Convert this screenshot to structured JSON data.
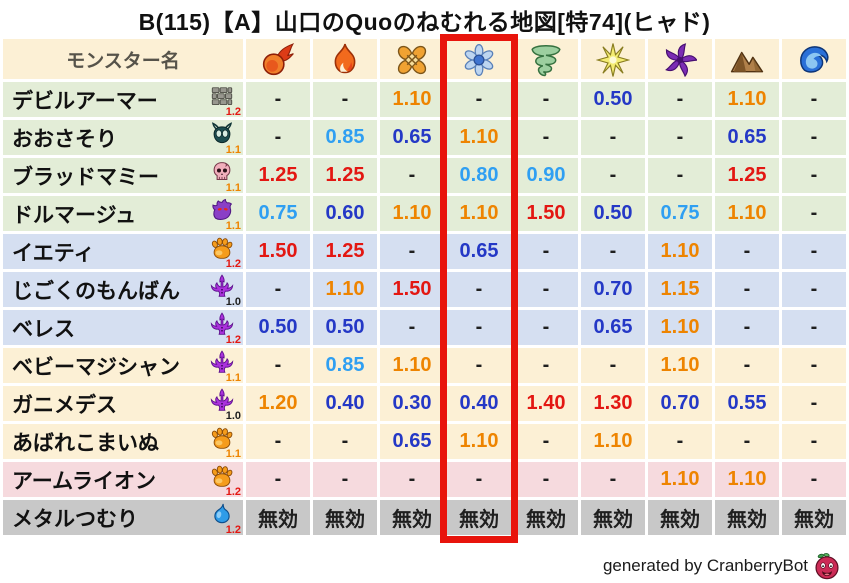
{
  "title": "B(115)【A】山口のQuoのねむれる地図[特74](ヒャド)",
  "header": {
    "name_column": "モンスター名",
    "element_columns": [
      "fire",
      "flame",
      "explosion",
      "ice",
      "wind",
      "lightning",
      "dark",
      "earth",
      "water"
    ]
  },
  "highlight": {
    "column_index": 3,
    "color": "#e8140c"
  },
  "rows": [
    {
      "name": "デビルアーマー",
      "family_icon": "wall",
      "multiplier": "1.2",
      "multiplier_tone": "r",
      "band": "green",
      "values": [
        "-",
        "-",
        "1.10",
        "-",
        "-",
        "0.50",
        "-",
        "1.10",
        "-"
      ],
      "tones": [
        "k",
        "k",
        "o",
        "k",
        "k",
        "b",
        "k",
        "o",
        "k"
      ]
    },
    {
      "name": "おおさそり",
      "family_icon": "bug",
      "multiplier": "1.1",
      "multiplier_tone": "o",
      "band": "green",
      "values": [
        "-",
        "0.85",
        "0.65",
        "1.10",
        "-",
        "-",
        "-",
        "0.65",
        "-"
      ],
      "tones": [
        "k",
        "lb",
        "b",
        "o",
        "k",
        "k",
        "k",
        "b",
        "k"
      ]
    },
    {
      "name": "ブラッドマミー",
      "family_icon": "skull",
      "multiplier": "1.1",
      "multiplier_tone": "o",
      "band": "green",
      "values": [
        "1.25",
        "1.25",
        "-",
        "0.80",
        "0.90",
        "-",
        "-",
        "1.25",
        "-"
      ],
      "tones": [
        "r",
        "r",
        "k",
        "lb",
        "lb",
        "k",
        "k",
        "r",
        "k"
      ]
    },
    {
      "name": "ドルマージュ",
      "family_icon": "ghost",
      "multiplier": "1.1",
      "multiplier_tone": "o",
      "band": "green",
      "values": [
        "0.75",
        "0.60",
        "1.10",
        "1.10",
        "1.50",
        "0.50",
        "0.75",
        "1.10",
        "-"
      ],
      "tones": [
        "lb",
        "b",
        "o",
        "o",
        "r",
        "b",
        "lb",
        "o",
        "k"
      ]
    },
    {
      "name": "イエティ",
      "family_icon": "paw",
      "multiplier": "1.2",
      "multiplier_tone": "r",
      "band": "blue",
      "values": [
        "1.50",
        "1.25",
        "-",
        "0.65",
        "-",
        "-",
        "1.10",
        "-",
        "-"
      ],
      "tones": [
        "r",
        "r",
        "k",
        "b",
        "k",
        "k",
        "o",
        "k",
        "k"
      ]
    },
    {
      "name": "じごくのもんばん",
      "family_icon": "trident",
      "multiplier": "1.0",
      "multiplier_tone": "k",
      "band": "blue",
      "values": [
        "-",
        "1.10",
        "1.50",
        "-",
        "-",
        "0.70",
        "1.15",
        "-",
        "-"
      ],
      "tones": [
        "k",
        "o",
        "r",
        "k",
        "k",
        "b",
        "o",
        "k",
        "k"
      ]
    },
    {
      "name": "ベレス",
      "family_icon": "trident",
      "multiplier": "1.2",
      "multiplier_tone": "r",
      "band": "blue",
      "values": [
        "0.50",
        "0.50",
        "-",
        "-",
        "-",
        "0.65",
        "1.10",
        "-",
        "-"
      ],
      "tones": [
        "b",
        "b",
        "k",
        "k",
        "k",
        "b",
        "o",
        "k",
        "k"
      ]
    },
    {
      "name": "ベビーマジシャン",
      "family_icon": "trident",
      "multiplier": "1.1",
      "multiplier_tone": "o",
      "band": "cream",
      "values": [
        "-",
        "0.85",
        "1.10",
        "-",
        "-",
        "-",
        "1.10",
        "-",
        "-"
      ],
      "tones": [
        "k",
        "lb",
        "o",
        "k",
        "k",
        "k",
        "o",
        "k",
        "k"
      ]
    },
    {
      "name": "ガニメデス",
      "family_icon": "trident",
      "multiplier": "1.0",
      "multiplier_tone": "k",
      "band": "cream",
      "values": [
        "1.20",
        "0.40",
        "0.30",
        "0.40",
        "1.40",
        "1.30",
        "0.70",
        "0.55",
        "-"
      ],
      "tones": [
        "o",
        "b",
        "b",
        "b",
        "r",
        "r",
        "b",
        "b",
        "k"
      ]
    },
    {
      "name": "あばれこまいぬ",
      "family_icon": "paw",
      "multiplier": "1.1",
      "multiplier_tone": "o",
      "band": "cream",
      "values": [
        "-",
        "-",
        "0.65",
        "1.10",
        "-",
        "1.10",
        "-",
        "-",
        "-"
      ],
      "tones": [
        "k",
        "k",
        "b",
        "o",
        "k",
        "o",
        "k",
        "k",
        "k"
      ]
    },
    {
      "name": "アームライオン",
      "family_icon": "paw",
      "multiplier": "1.2",
      "multiplier_tone": "r",
      "band": "pink",
      "values": [
        "-",
        "-",
        "-",
        "-",
        "-",
        "-",
        "1.10",
        "1.10",
        "-"
      ],
      "tones": [
        "k",
        "k",
        "k",
        "k",
        "k",
        "k",
        "o",
        "o",
        "k"
      ]
    },
    {
      "name": "メタルつむり",
      "family_icon": "slime",
      "multiplier": "1.2",
      "multiplier_tone": "r",
      "band": "gray",
      "values": [
        "無効",
        "無効",
        "無効",
        "無効",
        "無効",
        "無効",
        "無効",
        "無効",
        "無効"
      ],
      "tones": [
        "k",
        "k",
        "k",
        "k",
        "k",
        "k",
        "k",
        "k",
        "k"
      ]
    }
  ],
  "colors": {
    "palette": {
      "k": "#1f1f1f",
      "o": "#ee8400",
      "r": "#e31712",
      "lb": "#2f9ff2",
      "b": "#2438c6"
    },
    "bands": {
      "cream": "#fcf0d5",
      "green": "#e3edd7",
      "blue": "#d5dff1",
      "pink": "#f6dade",
      "gray": "#c8c8c8"
    },
    "header_text": "#56534a"
  },
  "footer": {
    "credit": "generated by CranberryBot"
  }
}
